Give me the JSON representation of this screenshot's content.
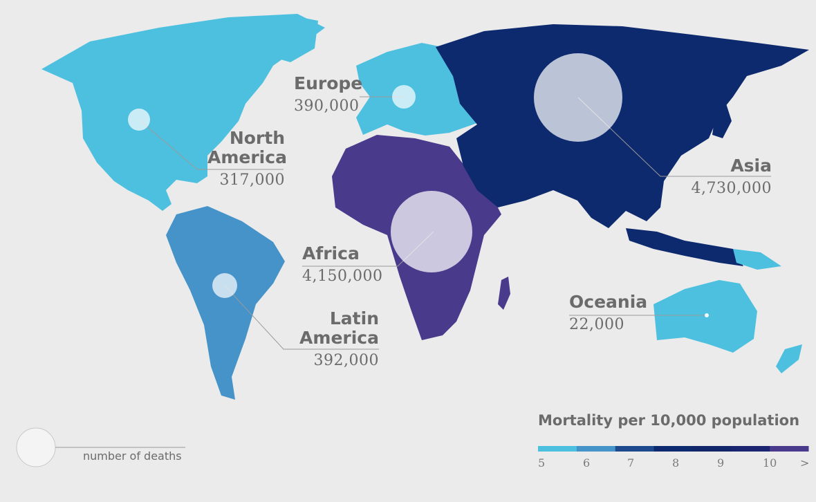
{
  "regions": [
    {
      "id": "north-america",
      "name_lines": [
        "North",
        "America"
      ],
      "deaths": "317,000",
      "color": "#4ec0df"
    },
    {
      "id": "latin-america",
      "name_lines": [
        "Latin",
        "America"
      ],
      "deaths": "392,000",
      "color": "#4593c9"
    },
    {
      "id": "europe",
      "name_lines": [
        "Europe"
      ],
      "deaths": "390,000",
      "color": "#4ec0df"
    },
    {
      "id": "africa",
      "name_lines": [
        "Africa"
      ],
      "deaths": "4,150,000",
      "color": "#4a3a8c"
    },
    {
      "id": "asia",
      "name_lines": [
        "Asia"
      ],
      "deaths": "4,730,000",
      "color": "#0e2a6f"
    },
    {
      "id": "oceania",
      "name_lines": [
        "Oceania"
      ],
      "deaths": "22,000",
      "color": "#4ec0df"
    }
  ],
  "legend": {
    "title": "Mortality per 10,000 population",
    "ticks": [
      "5",
      "6",
      "7",
      "8",
      "9",
      "10",
      ">"
    ],
    "colors": [
      "#4ec0df",
      "#4593c9",
      "#1c4a8c",
      "#0e2a6f",
      "#102668",
      "#1a2470",
      "#4a3a8c"
    ]
  },
  "size_legend": {
    "label": "number of deaths"
  }
}
